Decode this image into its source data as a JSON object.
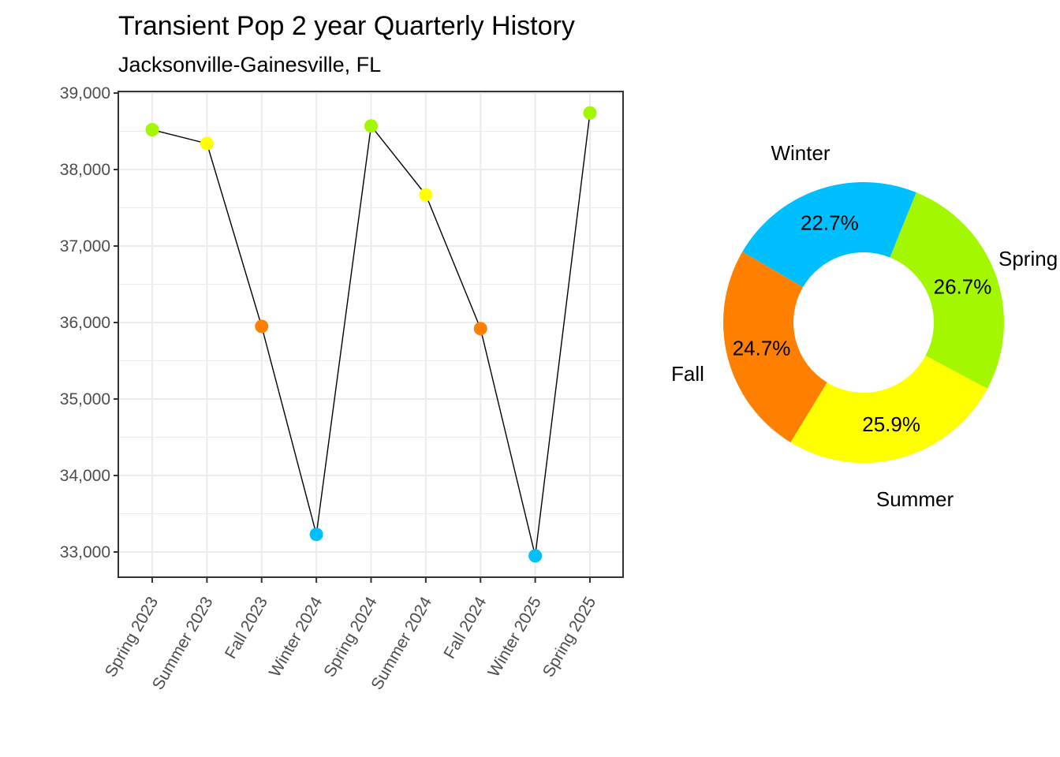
{
  "chart_data": [
    {
      "type": "line",
      "title": "Transient Pop 2 year Quarterly History",
      "subtitle": "Jacksonville-Gainesville, FL",
      "xlabel": "",
      "ylabel": "",
      "categories": [
        "Spring 2023",
        "Summer 2023",
        "Fall 2023",
        "Winter 2024",
        "Spring 2024",
        "Summer 2024",
        "Fall 2024",
        "Winter 2025",
        "Spring 2025"
      ],
      "seasons": [
        "Spring",
        "Summer",
        "Fall",
        "Winter",
        "Spring",
        "Summer",
        "Fall",
        "Winter",
        "Spring"
      ],
      "values": [
        38520,
        38340,
        35950,
        33230,
        38570,
        37670,
        35920,
        32950,
        38740
      ],
      "ylim": [
        32700,
        39000
      ],
      "yticks": [
        33000,
        34000,
        35000,
        36000,
        37000,
        38000,
        39000
      ],
      "ytick_labels": [
        "33,000",
        "34,000",
        "35,000",
        "36,000",
        "37,000",
        "38,000",
        "39,000"
      ],
      "grid": true,
      "legend": "none",
      "season_colors": {
        "Spring": "#A3F700",
        "Summer": "#FFFF00",
        "Fall": "#FF8000",
        "Winter": "#00BFFF"
      },
      "line_color": "#000000"
    },
    {
      "type": "pie",
      "variant": "donut",
      "labels": [
        "Spring",
        "Summer",
        "Fall",
        "Winter"
      ],
      "values": [
        26.7,
        25.9,
        24.7,
        22.7
      ],
      "value_labels": [
        "26.7%",
        "25.9%",
        "24.7%",
        "22.7%"
      ],
      "colors": [
        "#A3F700",
        "#FFFF00",
        "#FF8000",
        "#00BFFF"
      ],
      "legend": "none"
    }
  ]
}
